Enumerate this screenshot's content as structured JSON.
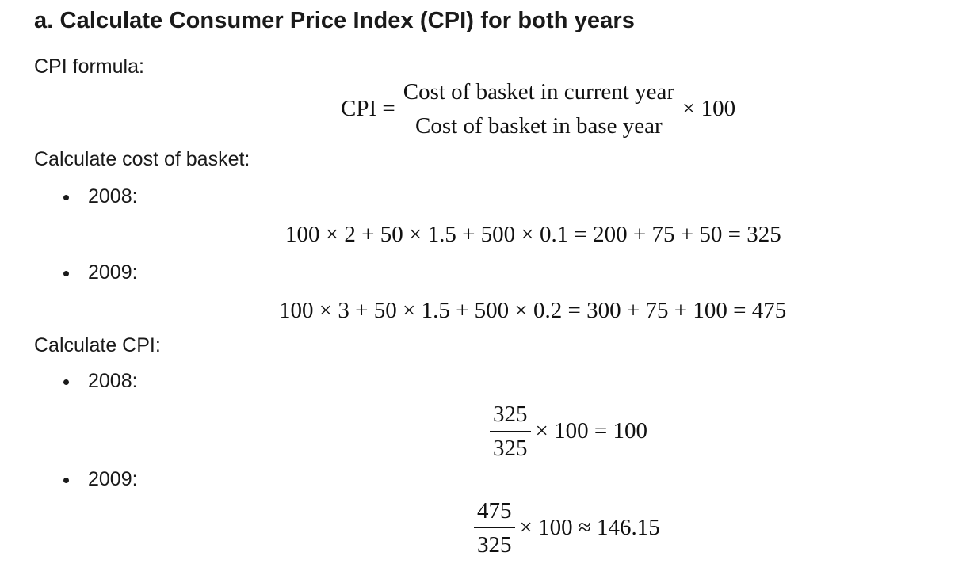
{
  "heading": "a. Calculate Consumer Price Index (CPI) for both years",
  "cpi_formula": {
    "label": "CPI formula:",
    "lhs": "CPI =",
    "numerator": "Cost of basket in current year",
    "denominator": "Cost of basket in base year",
    "rhs": "× 100"
  },
  "basket": {
    "label": "Calculate cost of basket:",
    "items": [
      {
        "year": "2008:",
        "equation": "100 × 2 + 50 × 1.5 + 500 × 0.1 = 200 + 75 + 50 = 325"
      },
      {
        "year": "2009:",
        "equation": "100 × 3 + 50 × 1.5 + 500 × 0.2 = 300 + 75 + 100 = 475"
      }
    ]
  },
  "cpi": {
    "label": "Calculate CPI:",
    "items": [
      {
        "year": "2008:",
        "numerator": "325",
        "denominator": "325",
        "rhs": "× 100 = 100"
      },
      {
        "year": "2009:",
        "numerator": "475",
        "denominator": "325",
        "rhs": "× 100 ≈ 146.15"
      }
    ]
  }
}
